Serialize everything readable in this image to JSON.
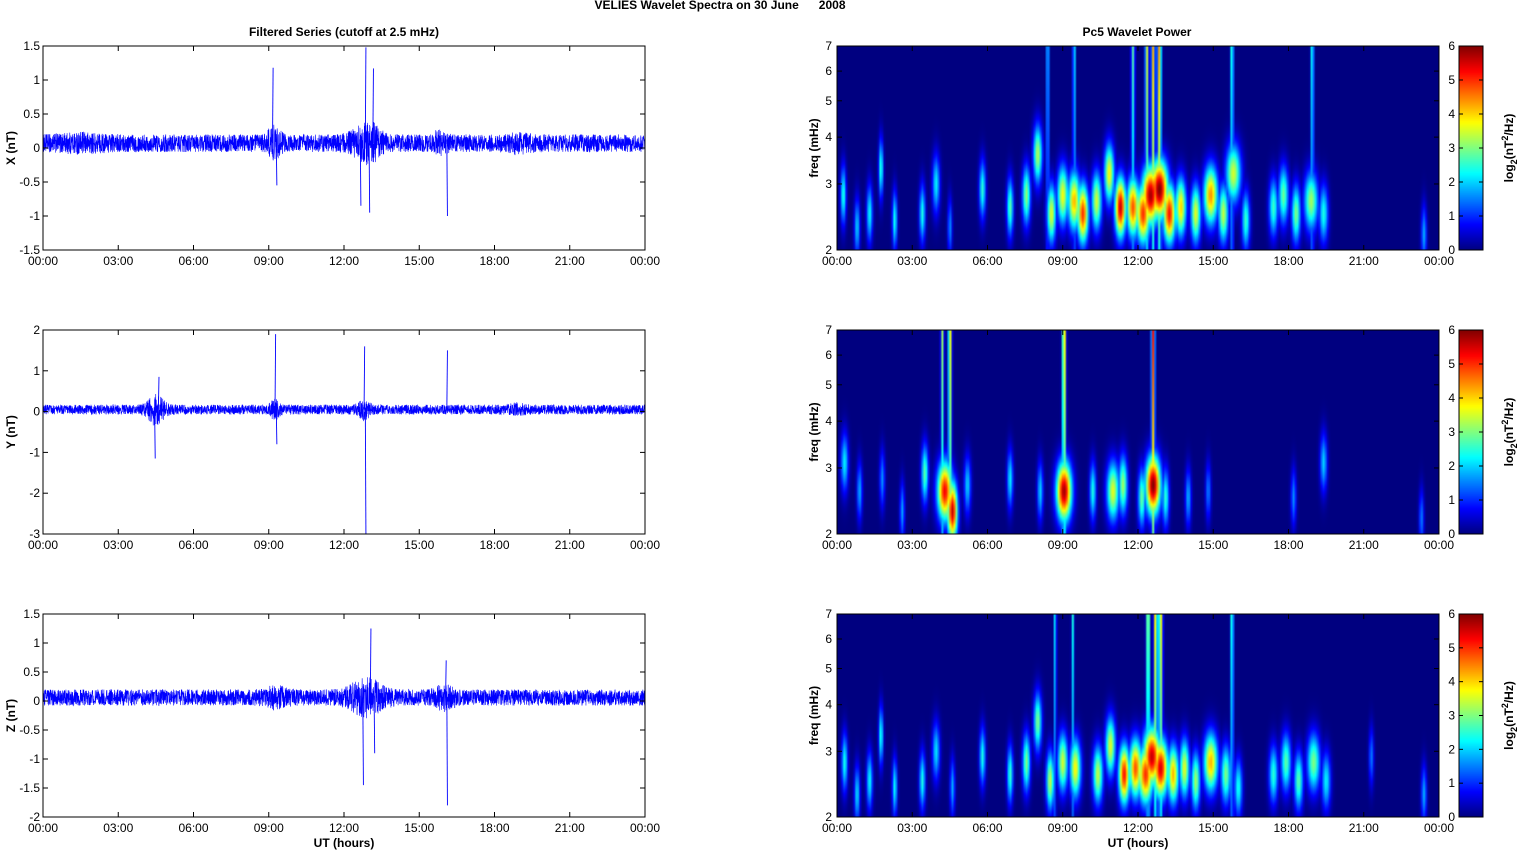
{
  "figure": {
    "title": "VELIES Wavelet Spectra on 30 June      2008",
    "left_title": "Filtered Series (cutoff at 2.5 mHz)",
    "right_title": "Pc5 Wavelet Power"
  },
  "chart_data": [
    {
      "type": "line",
      "ylabel": "X (nT)",
      "xlabel": "",
      "x_ticks": [
        "00:00",
        "03:00",
        "06:00",
        "09:00",
        "12:00",
        "15:00",
        "18:00",
        "21:00",
        "00:00"
      ],
      "xlim": [
        0,
        24
      ],
      "ylim": [
        -1.5,
        1.5
      ],
      "y_ticks": [
        "-1.5",
        "-1",
        "-0.5",
        "0",
        "0.5",
        "1",
        "1.5"
      ],
      "y_tick_values": [
        -1.5,
        -1,
        -0.5,
        0,
        0.5,
        1,
        1.5
      ],
      "color": "#0000ff",
      "baseline": 0.07,
      "noise_amplitude": 0.13,
      "bursts": [
        [
          9.2,
          0.3,
          1.1
        ],
        [
          12.8,
          0.6,
          1.0
        ],
        [
          13.1,
          0.4,
          0.8
        ],
        [
          15.8,
          0.3,
          0.6
        ],
        [
          19.0,
          0.5,
          0.4
        ],
        [
          1.5,
          1.0,
          0.3
        ]
      ],
      "spikes": [
        [
          9.15,
          1.18
        ],
        [
          9.3,
          -0.55
        ],
        [
          12.65,
          -0.85
        ],
        [
          12.85,
          1.48
        ],
        [
          13.0,
          -0.95
        ],
        [
          13.15,
          1.17
        ],
        [
          16.1,
          -1.0
        ]
      ]
    },
    {
      "type": "line",
      "ylabel": "Y (nT)",
      "xlabel": "",
      "x_ticks": [
        "00:00",
        "03:00",
        "06:00",
        "09:00",
        "12:00",
        "15:00",
        "18:00",
        "21:00",
        "00:00"
      ],
      "xlim": [
        0,
        24
      ],
      "ylim": [
        -3,
        2
      ],
      "y_ticks": [
        "-3",
        "-2",
        "-1",
        "0",
        "1",
        "2"
      ],
      "y_tick_values": [
        -3,
        -2,
        -1,
        0,
        1,
        2
      ],
      "color": "#0000ff",
      "baseline": 0.05,
      "noise_amplitude": 0.12,
      "bursts": [
        [
          4.5,
          0.35,
          2.5
        ],
        [
          9.25,
          0.2,
          1.3
        ],
        [
          12.8,
          0.25,
          1.4
        ],
        [
          18.9,
          0.4,
          0.5
        ]
      ],
      "spikes": [
        [
          4.45,
          -1.15
        ],
        [
          4.6,
          0.85
        ],
        [
          9.25,
          1.9
        ],
        [
          9.3,
          -0.8
        ],
        [
          12.8,
          1.6
        ],
        [
          12.85,
          -3.0
        ],
        [
          16.1,
          1.5
        ]
      ]
    },
    {
      "type": "line",
      "ylabel": "Z (nT)",
      "xlabel": "UT (hours)",
      "x_ticks": [
        "00:00",
        "03:00",
        "06:00",
        "09:00",
        "12:00",
        "15:00",
        "18:00",
        "21:00",
        "00:00"
      ],
      "xlim": [
        0,
        24
      ],
      "ylim": [
        -2,
        1.5
      ],
      "y_ticks": [
        "-2",
        "-1.5",
        "-1",
        "-0.5",
        "0",
        "0.5",
        "1",
        "1.5"
      ],
      "y_tick_values": [
        -2,
        -1.5,
        -1,
        -0.5,
        0,
        0.5,
        1,
        1.5
      ],
      "color": "#0000ff",
      "baseline": 0.06,
      "noise_amplitude": 0.14,
      "bursts": [
        [
          12.9,
          0.7,
          1.6
        ],
        [
          16.0,
          0.4,
          0.8
        ],
        [
          9.3,
          0.5,
          0.6
        ]
      ],
      "spikes": [
        [
          12.75,
          -1.45
        ],
        [
          13.05,
          1.25
        ],
        [
          13.2,
          -0.9
        ],
        [
          16.1,
          -1.8
        ],
        [
          16.05,
          0.7
        ]
      ]
    },
    {
      "type": "heatmap",
      "ylabel": "freq (mHz)",
      "xlabel": "",
      "x_ticks": [
        "00:00",
        "03:00",
        "06:00",
        "09:00",
        "12:00",
        "15:00",
        "18:00",
        "21:00",
        "00:00"
      ],
      "xlim": [
        0,
        24
      ],
      "ylim": [
        2,
        7
      ],
      "y_scale": "log",
      "y_ticks": [
        "2",
        "3",
        "4",
        "5",
        "6",
        "7"
      ],
      "y_tick_values": [
        2,
        3,
        4,
        5,
        6,
        7
      ],
      "colorbar_label": "log2(nT^2/Hz)",
      "colorbar_ticks": [
        "0",
        "1",
        "2",
        "3",
        "4",
        "5",
        "6"
      ],
      "clim": [
        0,
        6
      ],
      "colormap": "jet",
      "blobs": [
        [
          0.25,
          2.8,
          0.11,
          2.5
        ],
        [
          0.8,
          2.3,
          0.11,
          2.0
        ],
        [
          1.3,
          2.5,
          0.12,
          2.3
        ],
        [
          1.75,
          3.3,
          0.09,
          2.6
        ],
        [
          2.3,
          2.4,
          0.1,
          2.4
        ],
        [
          3.4,
          2.5,
          0.12,
          2.4
        ],
        [
          3.95,
          3.0,
          0.15,
          2.2
        ],
        [
          4.5,
          2.3,
          0.09,
          1.6
        ],
        [
          5.8,
          2.9,
          0.13,
          2.5
        ],
        [
          6.9,
          2.6,
          0.13,
          2.8
        ],
        [
          7.55,
          2.8,
          0.16,
          3.1
        ],
        [
          8.0,
          3.6,
          0.18,
          3.3
        ],
        [
          8.55,
          2.5,
          0.18,
          3.6
        ],
        [
          9.0,
          2.8,
          0.22,
          3.7
        ],
        [
          9.45,
          2.7,
          0.25,
          4.2
        ],
        [
          9.8,
          2.5,
          0.22,
          5.0
        ],
        [
          10.35,
          2.7,
          0.2,
          3.5
        ],
        [
          10.85,
          3.2,
          0.2,
          3.8
        ],
        [
          11.3,
          2.6,
          0.22,
          5.6
        ],
        [
          11.8,
          2.6,
          0.25,
          4.8
        ],
        [
          12.2,
          2.5,
          0.28,
          5.0
        ],
        [
          12.5,
          2.8,
          0.35,
          5.8
        ],
        [
          12.85,
          2.9,
          0.35,
          6.0
        ],
        [
          13.25,
          2.5,
          0.25,
          5.2
        ],
        [
          13.7,
          2.6,
          0.22,
          4.0
        ],
        [
          14.3,
          2.5,
          0.2,
          3.6
        ],
        [
          14.9,
          2.8,
          0.28,
          4.4
        ],
        [
          15.4,
          2.5,
          0.2,
          3.4
        ],
        [
          15.8,
          3.2,
          0.3,
          3.5
        ],
        [
          16.3,
          2.4,
          0.16,
          2.6
        ],
        [
          17.4,
          2.6,
          0.18,
          2.6
        ],
        [
          17.8,
          2.8,
          0.2,
          2.9
        ],
        [
          18.3,
          2.5,
          0.18,
          3.0
        ],
        [
          18.9,
          2.7,
          0.28,
          3.2
        ],
        [
          19.4,
          2.5,
          0.18,
          2.4
        ],
        [
          23.4,
          2.2,
          0.11,
          1.8
        ]
      ],
      "streaks": [
        [
          12.35,
          0.07,
          3.6
        ],
        [
          12.6,
          0.07,
          4.2
        ],
        [
          12.85,
          0.08,
          4.4
        ],
        [
          11.8,
          0.07,
          2.8
        ],
        [
          15.75,
          0.06,
          3.0
        ],
        [
          8.4,
          0.05,
          2.8
        ],
        [
          9.45,
          0.05,
          2.8
        ],
        [
          18.95,
          0.06,
          2.8
        ]
      ]
    },
    {
      "type": "heatmap",
      "ylabel": "freq (mHz)",
      "xlabel": "",
      "x_ticks": [
        "00:00",
        "03:00",
        "06:00",
        "09:00",
        "12:00",
        "15:00",
        "18:00",
        "21:00",
        "00:00"
      ],
      "xlim": [
        0,
        24
      ],
      "ylim": [
        2,
        7
      ],
      "y_scale": "log",
      "y_ticks": [
        "2",
        "3",
        "4",
        "5",
        "6",
        "7"
      ],
      "y_tick_values": [
        2,
        3,
        4,
        5,
        6,
        7
      ],
      "colorbar_label": "log2(nT^2/Hz)",
      "colorbar_ticks": [
        "0",
        "1",
        "2",
        "3",
        "4",
        "5",
        "6"
      ],
      "clim": [
        0,
        6
      ],
      "colormap": "jet",
      "blobs": [
        [
          0.3,
          3.1,
          0.15,
          2.2
        ],
        [
          0.9,
          2.6,
          0.11,
          1.8
        ],
        [
          1.8,
          2.8,
          0.11,
          1.6
        ],
        [
          2.6,
          2.3,
          0.1,
          1.7
        ],
        [
          3.5,
          2.9,
          0.14,
          2.8
        ],
        [
          4.3,
          2.6,
          0.3,
          5.3
        ],
        [
          4.6,
          2.3,
          0.2,
          5.6
        ],
        [
          5.2,
          2.7,
          0.14,
          2.0
        ],
        [
          6.9,
          2.8,
          0.12,
          2.2
        ],
        [
          8.1,
          2.6,
          0.12,
          2.0
        ],
        [
          9.05,
          2.6,
          0.3,
          5.8
        ],
        [
          10.2,
          2.6,
          0.13,
          2.4
        ],
        [
          11.0,
          2.6,
          0.25,
          3.6
        ],
        [
          11.4,
          2.7,
          0.18,
          3.2
        ],
        [
          12.15,
          2.5,
          0.15,
          2.9
        ],
        [
          12.6,
          2.7,
          0.3,
          6.0
        ],
        [
          13.1,
          2.5,
          0.14,
          2.5
        ],
        [
          14.0,
          2.5,
          0.12,
          1.8
        ],
        [
          14.8,
          2.6,
          0.11,
          1.5
        ],
        [
          18.2,
          2.5,
          0.11,
          1.6
        ],
        [
          19.4,
          3.1,
          0.14,
          2.0
        ],
        [
          23.3,
          2.2,
          0.1,
          1.5
        ]
      ],
      "streaks": [
        [
          4.2,
          0.06,
          3.2
        ],
        [
          4.5,
          0.07,
          4.0
        ],
        [
          9.05,
          0.07,
          4.6
        ],
        [
          12.6,
          0.07,
          5.2
        ]
      ]
    },
    {
      "type": "heatmap",
      "ylabel": "freq (mHz)",
      "xlabel": "UT (hours)",
      "x_ticks": [
        "00:00",
        "03:00",
        "06:00",
        "09:00",
        "12:00",
        "15:00",
        "18:00",
        "21:00",
        "00:00"
      ],
      "xlim": [
        0,
        24
      ],
      "ylim": [
        2,
        7
      ],
      "y_scale": "log",
      "y_ticks": [
        "2",
        "3",
        "4",
        "5",
        "6",
        "7"
      ],
      "y_tick_values": [
        2,
        3,
        4,
        5,
        6,
        7
      ],
      "colorbar_label": "log2(nT^2/Hz)",
      "colorbar_ticks": [
        "0",
        "1",
        "2",
        "3",
        "4",
        "5",
        "6"
      ],
      "clim": [
        0,
        6
      ],
      "colormap": "jet",
      "blobs": [
        [
          0.3,
          2.8,
          0.12,
          2.4
        ],
        [
          0.8,
          2.3,
          0.11,
          2.1
        ],
        [
          1.3,
          2.5,
          0.12,
          2.3
        ],
        [
          1.75,
          3.3,
          0.09,
          2.5
        ],
        [
          2.3,
          2.4,
          0.1,
          2.3
        ],
        [
          3.4,
          2.5,
          0.12,
          2.4
        ],
        [
          3.95,
          3.0,
          0.15,
          2.1
        ],
        [
          4.6,
          2.4,
          0.1,
          1.8
        ],
        [
          5.8,
          2.9,
          0.12,
          2.4
        ],
        [
          6.9,
          2.6,
          0.12,
          2.6
        ],
        [
          7.55,
          2.8,
          0.15,
          3.0
        ],
        [
          8.0,
          3.6,
          0.16,
          3.0
        ],
        [
          8.5,
          2.5,
          0.16,
          3.4
        ],
        [
          9.0,
          2.8,
          0.2,
          3.5
        ],
        [
          9.5,
          2.7,
          0.22,
          3.8
        ],
        [
          10.4,
          2.6,
          0.2,
          3.4
        ],
        [
          10.9,
          3.1,
          0.2,
          3.6
        ],
        [
          11.45,
          2.6,
          0.22,
          5.2
        ],
        [
          11.9,
          2.7,
          0.25,
          4.8
        ],
        [
          12.3,
          2.6,
          0.3,
          5.0
        ],
        [
          12.55,
          2.9,
          0.35,
          5.6
        ],
        [
          12.9,
          2.7,
          0.3,
          5.5
        ],
        [
          13.4,
          2.6,
          0.22,
          4.2
        ],
        [
          13.85,
          2.7,
          0.2,
          3.6
        ],
        [
          14.3,
          2.5,
          0.18,
          3.2
        ],
        [
          14.9,
          2.8,
          0.28,
          4.2
        ],
        [
          15.5,
          2.6,
          0.2,
          3.0
        ],
        [
          16.0,
          2.4,
          0.16,
          2.4
        ],
        [
          17.4,
          2.6,
          0.18,
          2.5
        ],
        [
          17.9,
          2.8,
          0.2,
          2.8
        ],
        [
          18.4,
          2.5,
          0.18,
          2.8
        ],
        [
          19.0,
          2.8,
          0.26,
          3.0
        ],
        [
          19.5,
          2.5,
          0.18,
          2.2
        ],
        [
          21.3,
          2.9,
          0.1,
          1.5
        ],
        [
          23.4,
          2.3,
          0.11,
          1.8
        ]
      ],
      "streaks": [
        [
          12.4,
          0.07,
          3.8
        ],
        [
          12.7,
          0.07,
          4.2
        ],
        [
          12.9,
          0.08,
          4.0
        ],
        [
          15.75,
          0.06,
          3.0
        ],
        [
          9.4,
          0.05,
          2.4
        ],
        [
          8.7,
          0.05,
          2.4
        ]
      ]
    }
  ]
}
